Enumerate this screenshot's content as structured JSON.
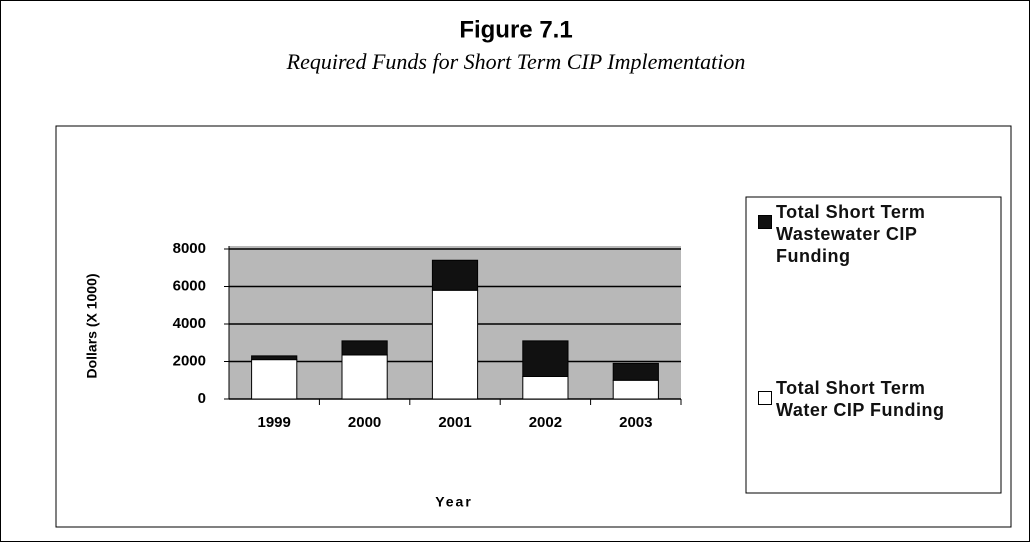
{
  "chart_data": {
    "type": "stacked_bar",
    "title": "Figure 7.1",
    "subtitle": "Required Funds for Short Term CIP Implementation",
    "y_label": "Dollars (X 1000)",
    "x_label": "Year",
    "categories": [
      "1999",
      "2000",
      "2001",
      "2002",
      "2003"
    ],
    "series": [
      {
        "name": "Total Short Term Wastewater CIP Funding",
        "color": "#111111",
        "values": [
          200,
          750,
          1600,
          1900,
          900
        ]
      },
      {
        "name": "Total Short Term Water CIP Funding",
        "color": "#ffffff",
        "values": [
          2100,
          2350,
          5800,
          1200,
          1000
        ]
      }
    ],
    "ylim": [
      0,
      8000
    ],
    "yticks": [
      0,
      2000,
      4000,
      6000,
      8000
    ],
    "grid": true
  }
}
